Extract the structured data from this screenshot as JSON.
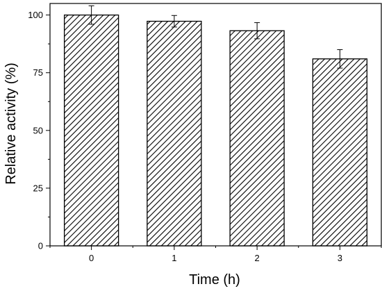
{
  "chart_data": {
    "type": "bar",
    "categories": [
      "0",
      "1",
      "2",
      "3"
    ],
    "values": [
      100,
      97.3,
      93.2,
      81
    ],
    "errors": [
      4,
      2.5,
      3.5,
      4
    ],
    "xlabel": "Time (h)",
    "ylabel": "Relative activity (%)",
    "ylim": [
      0,
      105
    ],
    "yticks": [
      0,
      25,
      50,
      75,
      100
    ],
    "grid": false,
    "bar_fill": "diagonal-hatch",
    "colors": {
      "bar_edge": "#000000",
      "hatch": "#000000",
      "background": "#ffffff"
    }
  }
}
